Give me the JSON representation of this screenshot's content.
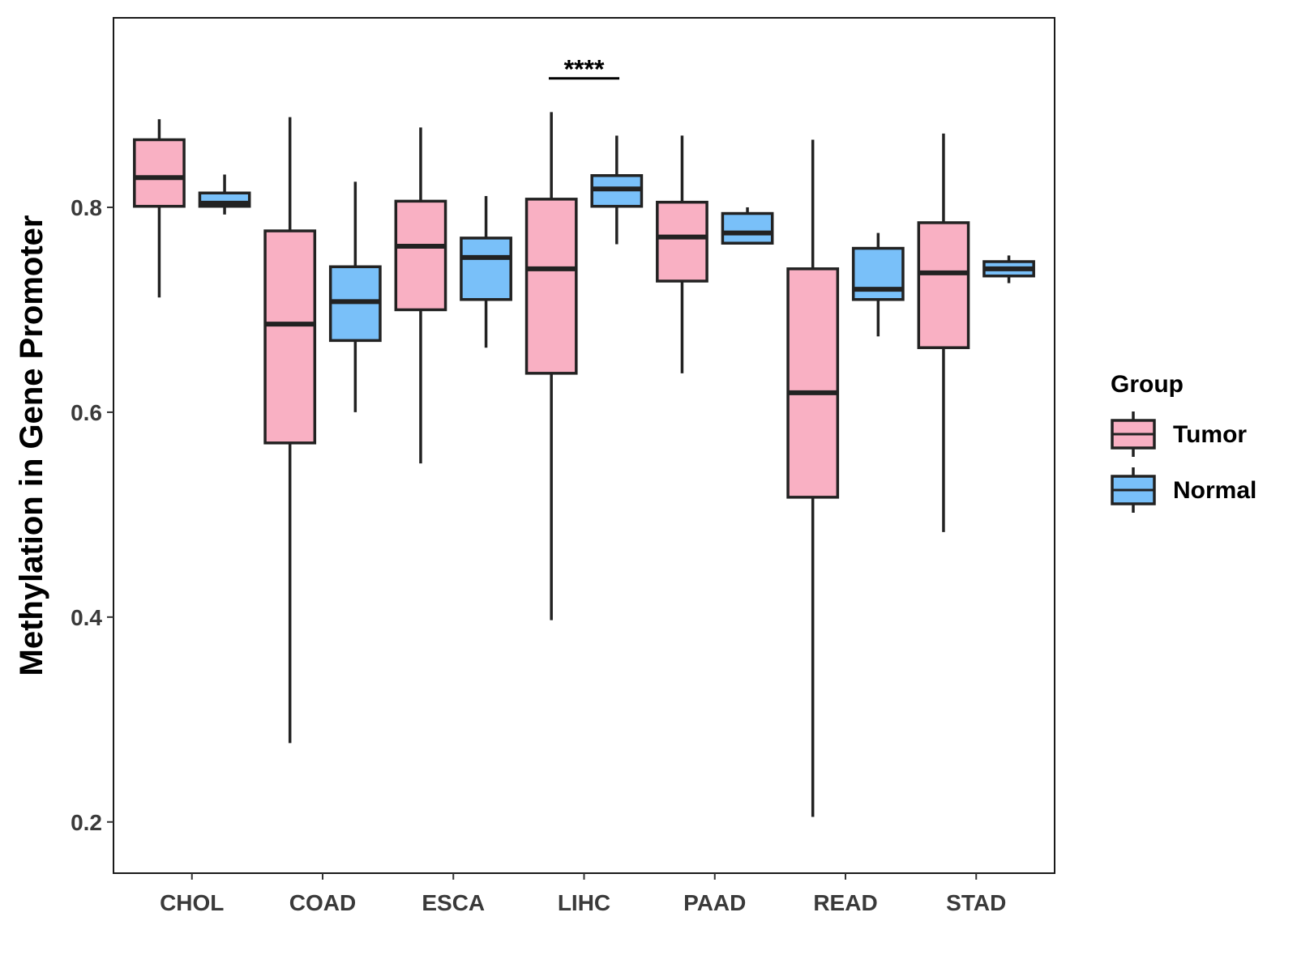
{
  "chart_data": {
    "type": "boxplot",
    "title": "",
    "xlabel": "",
    "ylabel": "Methylation in Gene Promoter",
    "ylim": [
      0.15,
      0.985
    ],
    "yticks": [
      0.2,
      0.4,
      0.6,
      0.8
    ],
    "ytick_labels": [
      "0.2",
      "0.4",
      "0.6",
      "0.8"
    ],
    "grid": false,
    "categories": [
      "CHOL",
      "COAD",
      "ESCA",
      "LIHC",
      "PAAD",
      "READ",
      "STAD"
    ],
    "legend": {
      "title": "Group",
      "position": "right",
      "entries": [
        {
          "name": "Tumor",
          "color": "#F9B0C3"
        },
        {
          "name": "Normal",
          "color": "#79C0F9"
        }
      ]
    },
    "series": [
      {
        "name": "Tumor",
        "color": "#F9B0C3",
        "boxes": [
          {
            "category": "CHOL",
            "min": 0.712,
            "q1": 0.801,
            "median": 0.829,
            "q3": 0.866,
            "max": 0.886
          },
          {
            "category": "COAD",
            "min": 0.277,
            "q1": 0.57,
            "median": 0.686,
            "q3": 0.777,
            "max": 0.888
          },
          {
            "category": "ESCA",
            "min": 0.55,
            "q1": 0.7,
            "median": 0.762,
            "q3": 0.806,
            "max": 0.878
          },
          {
            "category": "LIHC",
            "min": 0.397,
            "q1": 0.638,
            "median": 0.74,
            "q3": 0.808,
            "max": 0.893
          },
          {
            "category": "PAAD",
            "min": 0.638,
            "q1": 0.728,
            "median": 0.771,
            "q3": 0.805,
            "max": 0.87
          },
          {
            "category": "READ",
            "min": 0.205,
            "q1": 0.517,
            "median": 0.619,
            "q3": 0.74,
            "max": 0.866
          },
          {
            "category": "STAD",
            "min": 0.483,
            "q1": 0.663,
            "median": 0.736,
            "q3": 0.785,
            "max": 0.872
          }
        ]
      },
      {
        "name": "Normal",
        "color": "#79C0F9",
        "boxes": [
          {
            "category": "CHOL",
            "min": 0.793,
            "q1": 0.801,
            "median": 0.804,
            "q3": 0.814,
            "max": 0.832
          },
          {
            "category": "COAD",
            "min": 0.6,
            "q1": 0.67,
            "median": 0.708,
            "q3": 0.742,
            "max": 0.825
          },
          {
            "category": "ESCA",
            "min": 0.663,
            "q1": 0.71,
            "median": 0.751,
            "q3": 0.77,
            "max": 0.811
          },
          {
            "category": "LIHC",
            "min": 0.764,
            "q1": 0.801,
            "median": 0.818,
            "q3": 0.831,
            "max": 0.87
          },
          {
            "category": "PAAD",
            "min": 0.765,
            "q1": 0.765,
            "median": 0.775,
            "q3": 0.794,
            "max": 0.8
          },
          {
            "category": "READ",
            "min": 0.674,
            "q1": 0.71,
            "median": 0.72,
            "q3": 0.76,
            "max": 0.775
          },
          {
            "category": "STAD",
            "min": 0.726,
            "q1": 0.733,
            "median": 0.74,
            "q3": 0.747,
            "max": 0.753
          }
        ]
      }
    ],
    "annotations": [
      {
        "category": "LIHC",
        "text": "****",
        "y": 0.937
      }
    ]
  }
}
